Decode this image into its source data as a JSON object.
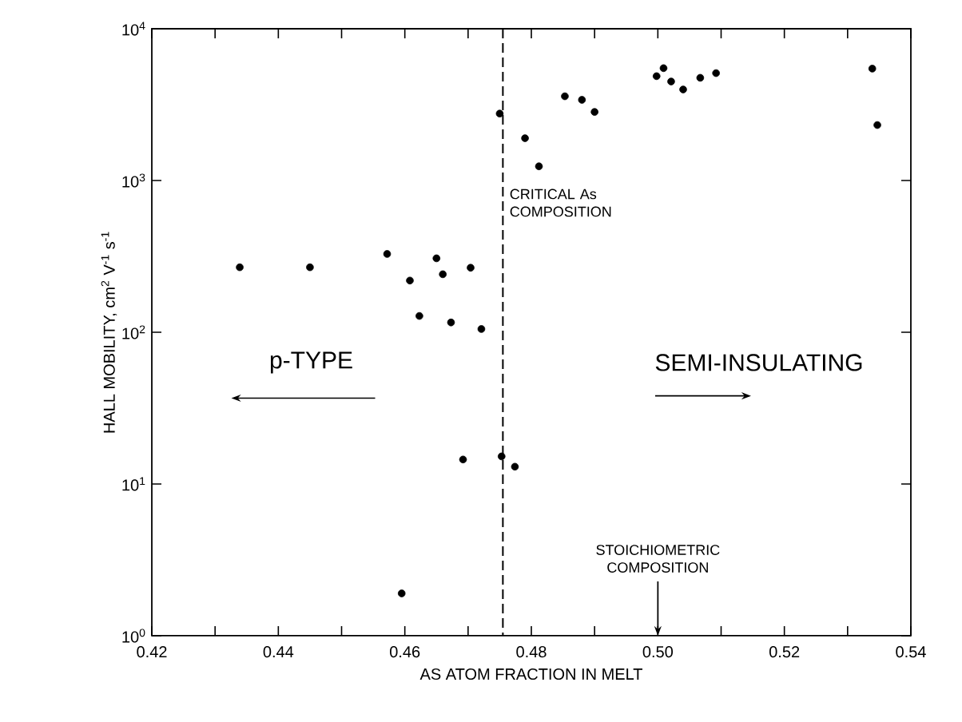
{
  "chart_data": {
    "type": "scatter",
    "xlabel": "AS ATOM FRACTION IN MELT",
    "ylabel": "HALL MOBILITY, cm$^{2}$ V$^{-1}$ s$^{-1}$",
    "log": "y",
    "xlim": [
      0.42,
      0.54
    ],
    "ylim": [
      1,
      10000
    ],
    "xticks": [
      0.42,
      {
        "value": 0.43,
        "label": null
      },
      0.44,
      {
        "value": 0.45,
        "label": null
      },
      0.46,
      {
        "value": 0.47,
        "label": null
      },
      0.48,
      {
        "value": 0.49,
        "label": null
      },
      {
        "value": 0.5,
        "label": "0.50"
      },
      {
        "value": 0.51,
        "label": null
      },
      0.52,
      {
        "value": 0.53,
        "label": null
      },
      0.54
    ],
    "yticks": [
      {
        "value": 1,
        "label": "10$^{0}$"
      },
      {
        "value": 10,
        "label": "10$^{1}$"
      },
      {
        "value": 100,
        "label": "10$^{2}$"
      },
      {
        "value": 1000,
        "label": "10$^{3}$"
      },
      {
        "value": 10000,
        "label": "10$^{4}$"
      }
    ],
    "marker": "circle",
    "series": [
      {
        "color": "#000000",
        "x": [
          0.4339,
          0.445,
          0.4572,
          0.4608,
          0.4623,
          0.465,
          0.466,
          0.4673,
          0.4704,
          0.4721,
          0.4692,
          0.4753,
          0.4774,
          0.4595,
          0.475,
          0.479,
          0.4812,
          0.4853,
          0.488,
          0.49,
          0.4998,
          0.5009,
          0.5021,
          0.504,
          0.5067,
          0.5092,
          0.5339,
          0.5347
        ],
        "values": [
          268,
          268,
          328,
          219,
          128,
          307,
          241,
          116,
          266,
          105,
          14.5,
          15.2,
          13,
          1.9,
          2760,
          1900,
          1240,
          3590,
          3400,
          2830,
          4870,
          5500,
          4490,
          3980,
          4750,
          5100,
          5460,
          2320
        ]
      }
    ],
    "ref_lines": [
      {
        "axis": "x",
        "value": 0.4755,
        "label": "CRITICAL As COMPOSITION",
        "line_style": "dashed"
      }
    ],
    "annotations": [
      "p-TYPE",
      "SEMI-INSULATING",
      "STOICHIOMETRIC COMPOSITION"
    ]
  }
}
